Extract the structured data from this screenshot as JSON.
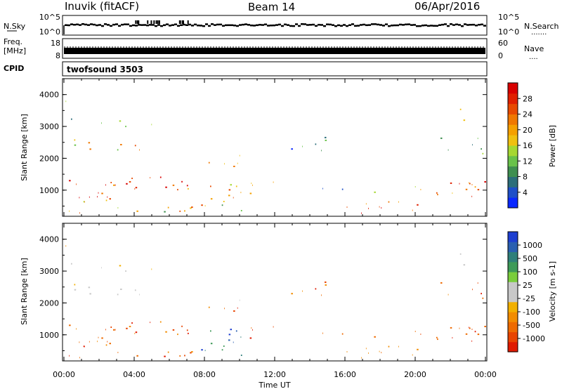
{
  "header": {
    "radar": "Inuvik (fitACF)",
    "beam": "Beam 14",
    "date": "06/Apr/2016"
  },
  "strips": {
    "nsky_label": "N.Sky",
    "nsearch_label": "N.Search",
    "nsearch_dots": ".......",
    "freq_label_1": "Freq.",
    "freq_label_2": "[MHz]",
    "nave_label": "Nave",
    "nave_dots": "....",
    "cpid_label": "CPID",
    "cpid_value": "twofsound 3503",
    "noise_ticks_left": [
      "10^5",
      "10^0"
    ],
    "noise_ticks_right": [
      "10^5",
      "10^0"
    ],
    "freq_ticks": [
      "18",
      "8"
    ],
    "nave_ticks": [
      "60",
      "0"
    ]
  },
  "chart_data": [
    {
      "type": "heatmap",
      "name": "power",
      "ylabel": "Slant Range [km]",
      "xlabel": "",
      "ylim": [
        180,
        4500
      ],
      "yticks": [
        1000,
        2000,
        3000,
        4000
      ],
      "colorbar": {
        "label": "Power [dB]",
        "ticks": [
          "4",
          "8",
          "12",
          "16",
          "20",
          "24",
          "28"
        ],
        "colors": [
          "#0a28ff",
          "#1e4fc8",
          "#2c6e7a",
          "#3f8f50",
          "#69c24a",
          "#a6d832",
          "#f0c010",
          "#f5a000",
          "#f07800",
          "#e84a00",
          "#e02000",
          "#d80000"
        ]
      }
    },
    {
      "type": "heatmap",
      "name": "velocity",
      "xlabel": "Time UT",
      "ylabel": "Slant Range [km]",
      "ylim": [
        180,
        4500
      ],
      "yticks": [
        1000,
        2000,
        3000,
        4000
      ],
      "xticks": [
        "00:00",
        "04:00",
        "08:00",
        "12:00",
        "16:00",
        "20:00",
        "00:00"
      ],
      "colorbar": {
        "label": "Velocity [m s-1]",
        "ticks": [
          "1000",
          "500",
          "100",
          "25",
          "-25",
          "-100",
          "-500",
          "-1000"
        ],
        "colors": [
          "#1e3fd0",
          "#2a5fb0",
          "#2f7f7a",
          "#3e9a58",
          "#7acd3c",
          "#c8c8c8",
          "#c8c8c8",
          "#f2b000",
          "#f28c00",
          "#ee6a00",
          "#e84400",
          "#e01a00"
        ]
      }
    }
  ]
}
